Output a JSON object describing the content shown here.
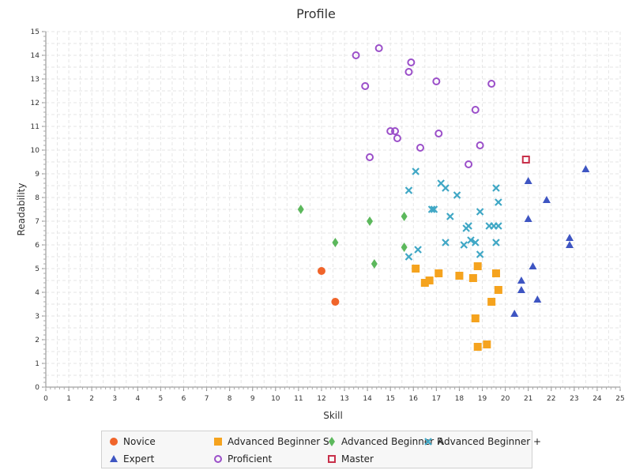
{
  "chart_data": {
    "type": "scatter",
    "title": "Profile",
    "xlabel": "Skill",
    "ylabel": "Readability",
    "xlim": [
      0,
      25
    ],
    "ylim": [
      0,
      15
    ],
    "xticks": [
      "0",
      "1",
      "2",
      "3",
      "4",
      "5",
      "6",
      "7",
      "8",
      "9",
      "10",
      "11",
      "12",
      "13",
      "14",
      "15",
      "16",
      "17",
      "18",
      "19",
      "20",
      "21",
      "22",
      "23",
      "24",
      "25"
    ],
    "yticks": [
      "0",
      "1",
      "2",
      "3",
      "4",
      "5",
      "6",
      "7",
      "8",
      "9",
      "10",
      "11",
      "12",
      "13",
      "14",
      "15"
    ],
    "grid": true,
    "legend_position": "bottom",
    "series": [
      {
        "name": "Novice",
        "marker": "circle",
        "color": "#f0642a",
        "points": [
          [
            12.0,
            4.9
          ],
          [
            12.6,
            3.6
          ]
        ]
      },
      {
        "name": "Advanced Beginner S",
        "marker": "square",
        "color": "#f5a31e",
        "points": [
          [
            16.1,
            5.0
          ],
          [
            16.5,
            4.4
          ],
          [
            16.7,
            4.5
          ],
          [
            17.1,
            4.8
          ],
          [
            18.0,
            4.7
          ],
          [
            18.6,
            4.6
          ],
          [
            18.8,
            5.1
          ],
          [
            19.6,
            4.8
          ],
          [
            19.7,
            4.1
          ],
          [
            19.4,
            3.6
          ],
          [
            18.7,
            2.9
          ],
          [
            19.2,
            1.8
          ],
          [
            18.8,
            1.7
          ]
        ]
      },
      {
        "name": "Advanced Beginner R",
        "marker": "diamond",
        "color": "#5cb85c",
        "points": [
          [
            11.1,
            7.5
          ],
          [
            12.6,
            6.1
          ],
          [
            14.1,
            7.0
          ],
          [
            14.3,
            5.2
          ],
          [
            15.6,
            7.2
          ],
          [
            15.6,
            5.9
          ]
        ]
      },
      {
        "name": "Advanced Beginner +",
        "marker": "x",
        "color": "#3fa7c5",
        "points": [
          [
            16.1,
            9.1
          ],
          [
            15.8,
            8.3
          ],
          [
            15.8,
            5.5
          ],
          [
            16.2,
            5.8
          ],
          [
            16.8,
            7.5
          ],
          [
            16.9,
            7.5
          ],
          [
            17.2,
            8.6
          ],
          [
            17.4,
            8.4
          ],
          [
            17.4,
            6.1
          ],
          [
            17.6,
            7.2
          ],
          [
            17.9,
            8.1
          ],
          [
            18.2,
            6.0
          ],
          [
            18.3,
            6.7
          ],
          [
            18.4,
            6.8
          ],
          [
            18.5,
            6.2
          ],
          [
            18.7,
            6.1
          ],
          [
            18.9,
            7.4
          ],
          [
            18.9,
            5.6
          ],
          [
            19.3,
            6.8
          ],
          [
            19.5,
            6.8
          ],
          [
            19.6,
            8.4
          ],
          [
            19.7,
            7.8
          ],
          [
            19.7,
            6.8
          ],
          [
            19.6,
            6.1
          ]
        ]
      },
      {
        "name": "Expert",
        "marker": "triangle",
        "color": "#3e55c2",
        "points": [
          [
            21.0,
            8.7
          ],
          [
            21.8,
            7.9
          ],
          [
            21.0,
            7.1
          ],
          [
            21.2,
            5.1
          ],
          [
            20.7,
            4.5
          ],
          [
            20.7,
            4.1
          ],
          [
            21.4,
            3.7
          ],
          [
            20.4,
            3.1
          ],
          [
            22.8,
            6.3
          ],
          [
            22.8,
            6.0
          ],
          [
            23.5,
            9.2
          ]
        ]
      },
      {
        "name": "Proficient",
        "marker": "circle-open",
        "color": "#9b4fc9",
        "points": [
          [
            13.5,
            14.0
          ],
          [
            14.5,
            14.3
          ],
          [
            13.9,
            12.7
          ],
          [
            15.8,
            13.3
          ],
          [
            15.9,
            13.7
          ],
          [
            17.0,
            12.9
          ],
          [
            19.4,
            12.8
          ],
          [
            18.7,
            11.7
          ],
          [
            15.0,
            10.8
          ],
          [
            15.2,
            10.8
          ],
          [
            15.3,
            10.5
          ],
          [
            17.1,
            10.7
          ],
          [
            16.3,
            10.1
          ],
          [
            18.9,
            10.2
          ],
          [
            14.1,
            9.7
          ],
          [
            18.4,
            9.4
          ]
        ]
      },
      {
        "name": "Master",
        "marker": "square-open",
        "color": "#c8304a",
        "points": [
          [
            20.9,
            9.6
          ]
        ]
      }
    ]
  }
}
